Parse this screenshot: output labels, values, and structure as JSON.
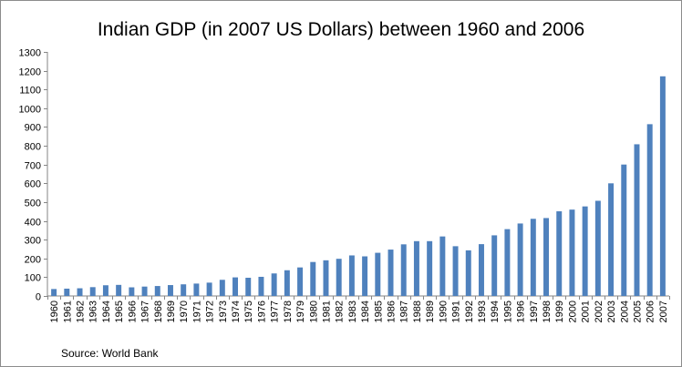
{
  "chart_data": {
    "type": "bar",
    "title": "Indian GDP (in 2007 US Dollars) between 1960 and 2006",
    "source": "Source: World Bank",
    "xlabel": "",
    "ylabel": "",
    "ylim": [
      0,
      1300
    ],
    "yticks": [
      0,
      100,
      200,
      300,
      400,
      500,
      600,
      700,
      800,
      900,
      1000,
      1100,
      1200,
      1300
    ],
    "grid": false,
    "legend": "none",
    "bar_color": "#4f81bd",
    "categories": [
      "1960",
      "1961",
      "1962",
      "1963",
      "1964",
      "1965",
      "1966",
      "1967",
      "1968",
      "1969",
      "1970",
      "1971",
      "1972",
      "1973",
      "1974",
      "1975",
      "1976",
      "1977",
      "1978",
      "1979",
      "1980",
      "1981",
      "1982",
      "1983",
      "1984",
      "1985",
      "1986",
      "1987",
      "1988",
      "1989",
      "1990",
      "1991",
      "1992",
      "1993",
      "1994",
      "1995",
      "1996",
      "1997",
      "1998",
      "1999",
      "2000",
      "2001",
      "2002",
      "2003",
      "2004",
      "2005",
      "2006",
      "2007"
    ],
    "values": [
      37,
      39,
      41,
      47,
      57,
      59,
      46,
      50,
      53,
      58,
      62,
      66,
      71,
      86,
      99,
      97,
      102,
      120,
      137,
      152,
      181,
      190,
      198,
      216,
      211,
      230,
      247,
      275,
      292,
      292,
      317,
      265,
      243,
      276,
      323,
      356,
      386,
      411,
      415,
      451,
      460,
      477,
      507,
      600,
      700,
      808,
      915,
      1170
    ]
  }
}
